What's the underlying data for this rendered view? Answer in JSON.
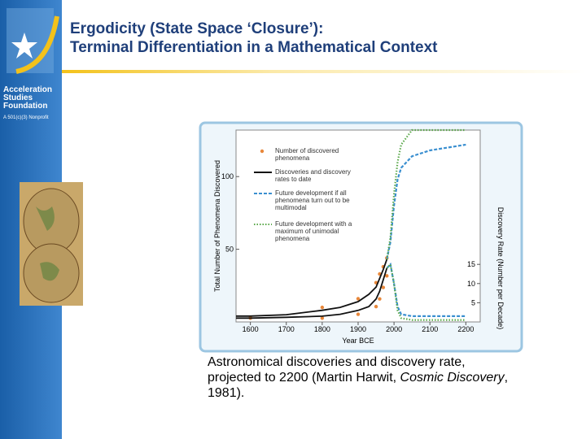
{
  "slide": {
    "title": [
      "Ergodicity (State Space ‘Closure’):",
      "Terminal Differentiation in a Mathematical Context"
    ],
    "org": [
      "Acceleration",
      "Studies",
      "Foundation"
    ],
    "org_note": "A 501(c)(3) Nonprofit",
    "caption": [
      "Astronomical discoveries and discovery rate, projected to 2200 (Martin Harwit, ",
      "Cosmic Discovery",
      ", 1981)."
    ]
  },
  "chart_data": {
    "type": "line",
    "xlabel": "Year BCE",
    "ylabel": "Total Number of Phenomena Discovered",
    "y2label": "Discovery Rate (Number per Decade)",
    "xlim": [
      1560,
      2240
    ],
    "xticks": [
      1600,
      1700,
      1800,
      1900,
      2000,
      2100,
      2200
    ],
    "ylim": [
      0,
      132
    ],
    "yticks": [
      50,
      100
    ],
    "y2lim": [
      0,
      50
    ],
    "y2ticks": [
      5,
      10,
      15
    ],
    "series": [
      {
        "name": "Number of discovered phenomena",
        "color": "#e8873a",
        "style": "markers",
        "x": [
          1600,
          1800,
          1900,
          1950,
          1960,
          1970,
          1980
        ],
        "values": [
          3,
          10,
          16,
          27,
          33,
          38,
          44
        ],
        "rate_values": [
          1,
          1,
          2,
          4,
          6,
          9,
          12
        ]
      },
      {
        "name": "Discoveries and discovery rates to date",
        "color": "#111111",
        "style": "solid",
        "x": [
          1560,
          1600,
          1700,
          1800,
          1850,
          1900,
          1930,
          1950,
          1960,
          1970,
          1980
        ],
        "values": [
          4,
          4,
          5,
          8,
          10,
          14,
          19,
          24,
          30,
          36,
          43
        ],
        "rate_values": [
          1,
          1,
          1.2,
          1.5,
          2,
          3,
          4,
          6,
          8,
          11,
          14
        ]
      },
      {
        "name": "Future development if all phenomena turn out to be multimodal",
        "color": "#3a8fd0",
        "style": "dashed",
        "x": [
          1980,
          1990,
          2000,
          2010,
          2020,
          2050,
          2100,
          2150,
          2200
        ],
        "values": [
          43,
          55,
          80,
          98,
          106,
          114,
          118,
          120,
          122
        ],
        "rate_values": [
          14,
          15,
          10,
          4,
          2,
          1.5,
          1.5,
          1.5,
          1.5
        ]
      },
      {
        "name": "Future development with a maximum of unimodal phenomena",
        "color": "#5aa84a",
        "style": "dotted",
        "x": [
          1980,
          1990,
          2000,
          2010,
          2020,
          2050,
          2100,
          2150,
          2200
        ],
        "values": [
          43,
          58,
          88,
          110,
          122,
          132,
          132,
          132,
          132
        ],
        "rate_values": [
          14,
          15,
          10,
          3,
          1,
          0.5,
          0.5,
          0.5,
          0.5
        ]
      }
    ]
  }
}
